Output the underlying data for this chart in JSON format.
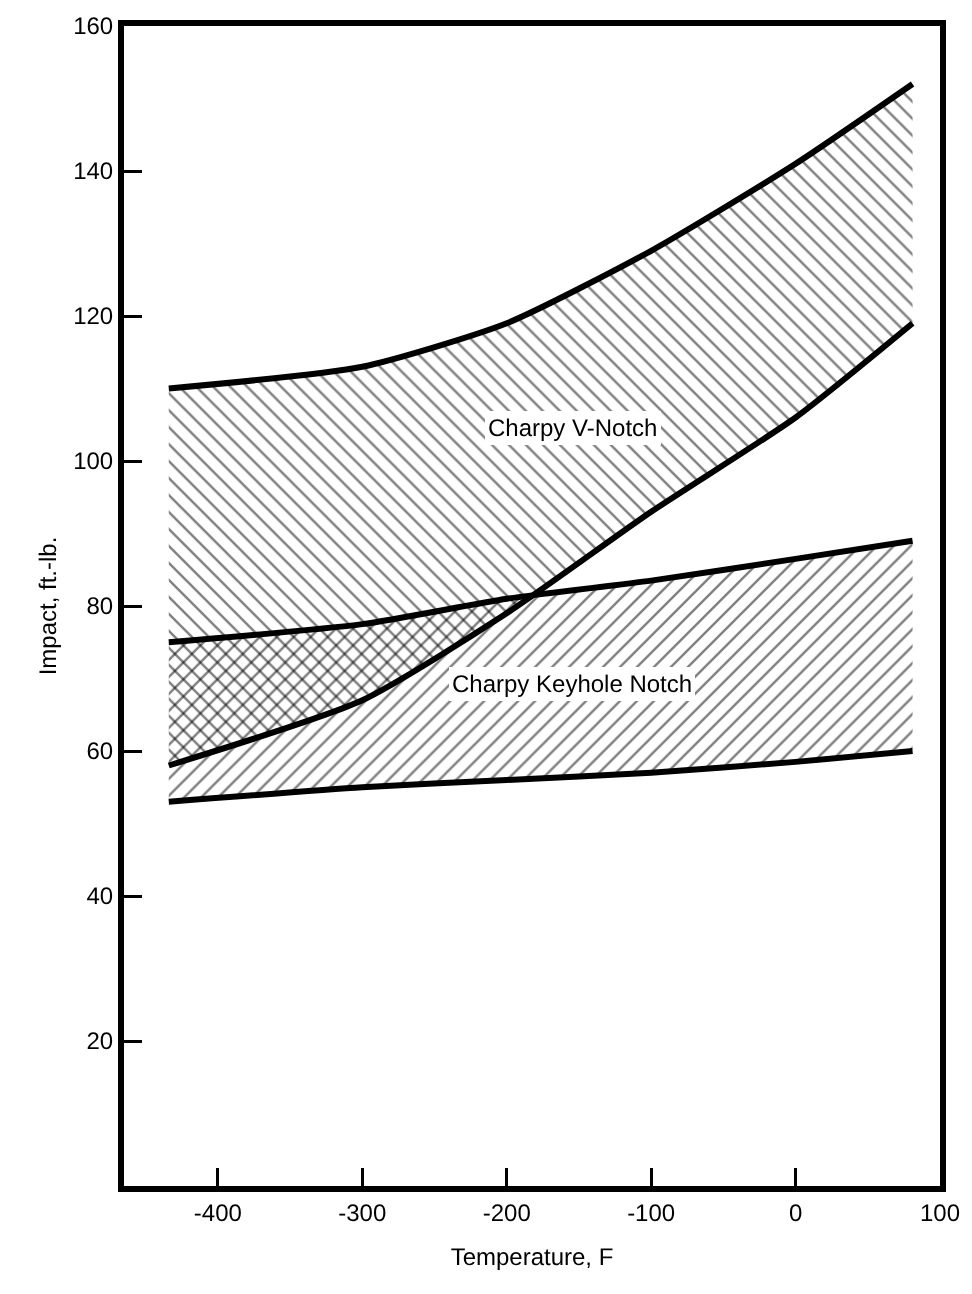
{
  "chart_data": {
    "type": "line",
    "xlabel": "Temperature, F",
    "ylabel": "Impact, ft.-lb.",
    "x": [
      -434,
      -300,
      -200,
      -100,
      0,
      81
    ],
    "xlim": [
      -465,
      100
    ],
    "xticks": [
      -400,
      -300,
      -200,
      -100,
      0,
      100
    ],
    "ylim": [
      0,
      160
    ],
    "yticks": [
      20,
      40,
      60,
      80,
      100,
      120,
      140,
      160
    ],
    "series": [
      {
        "color": "#000000",
        "values": [
          58,
          67,
          79,
          93,
          106,
          119
        ]
      },
      {
        "type": "area",
        "name": "Charpy V-Notch",
        "color": "#000000",
        "values": [
          110,
          113,
          119,
          129,
          141,
          152
        ]
      },
      {
        "color": "#000000",
        "values": [
          53,
          55,
          56,
          57,
          58.5,
          60
        ]
      },
      {
        "type": "area",
        "name": "Charpy Keyhole Notch",
        "color": "#000000",
        "values": [
          75,
          77.5,
          81,
          83.5,
          86.5,
          89
        ]
      }
    ],
    "grid": false,
    "legend": false
  }
}
